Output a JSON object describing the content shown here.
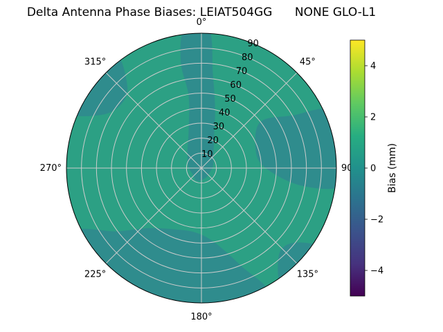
{
  "title": "Delta Antenna Phase Biases: LEIAT504GG      NONE GLO-L1",
  "chart_data": {
    "type": "heatmap",
    "projection": "polar-contour",
    "title": "Delta Antenna Phase Biases: LEIAT504GG      NONE GLO-L1",
    "antenna": "LEIAT504GG",
    "comparison": "NONE GLO-L1",
    "azimuth_labels": [
      {
        "angle": 0,
        "label": "0°"
      },
      {
        "angle": 45,
        "label": "45°"
      },
      {
        "angle": 90,
        "label": "90"
      },
      {
        "angle": 135,
        "label": "135°"
      },
      {
        "angle": 180,
        "label": "180°"
      },
      {
        "angle": 225,
        "label": "225°"
      },
      {
        "angle": 270,
        "label": "270°"
      },
      {
        "angle": 315,
        "label": "315°"
      }
    ],
    "radial_ticks": {
      "label_angle_deg": 22.5,
      "values": [
        10,
        20,
        30,
        40,
        50,
        60,
        70,
        80,
        90
      ],
      "max": 90
    },
    "grid": {
      "rings": 9,
      "spokes_every_deg": 45,
      "color": "#cccccc",
      "outline_color": "#000000"
    },
    "base_region": {
      "value_mm": 0.8,
      "color": "#2ca084"
    },
    "regions": [
      {
        "name": "center-to-top-lobe",
        "value_mm": -0.5,
        "color": "#2f8c8d",
        "points": [
          [
            353,
            1.04
          ],
          [
            349,
            0.8
          ],
          [
            350,
            0.55
          ],
          [
            343,
            0.32
          ],
          [
            320,
            0.16
          ],
          [
            280,
            0.1
          ],
          [
            240,
            0.08
          ],
          [
            200,
            0.1
          ],
          [
            160,
            0.08
          ],
          [
            120,
            0.07
          ],
          [
            75,
            0.09
          ],
          [
            40,
            0.14
          ],
          [
            22,
            0.25
          ],
          [
            13,
            0.45
          ],
          [
            7,
            0.7
          ],
          [
            3,
            1.04
          ]
        ]
      },
      {
        "name": "east-lobe",
        "value_mm": -0.5,
        "color": "#2f8c8d",
        "points": [
          [
            52,
            0.55
          ],
          [
            60,
            0.78
          ],
          [
            66,
            1.05
          ],
          [
            82,
            1.06
          ],
          [
            97,
            1.05
          ],
          [
            100,
            0.76
          ],
          [
            92,
            0.5
          ],
          [
            75,
            0.42
          ]
        ]
      },
      {
        "name": "south-west-lobe",
        "value_mm": -0.5,
        "color": "#2f8c8d",
        "points": [
          [
            152,
            1.05
          ],
          [
            158,
            0.78
          ],
          [
            170,
            0.56
          ],
          [
            185,
            0.48
          ],
          [
            205,
            0.5
          ],
          [
            222,
            0.6
          ],
          [
            233,
            0.78
          ],
          [
            243,
            1.05
          ],
          [
            220,
            1.07
          ],
          [
            195,
            1.07
          ],
          [
            170,
            1.07
          ]
        ]
      },
      {
        "name": "west-edge-lobe",
        "value_mm": -0.5,
        "color": "#2f8c8d",
        "points": [
          [
            293,
            1.06
          ],
          [
            298,
            0.84
          ],
          [
            308,
            0.76
          ],
          [
            318,
            0.82
          ],
          [
            323,
            1.06
          ],
          [
            308,
            1.08
          ]
        ]
      },
      {
        "name": "south-east-edge-lobe",
        "value_mm": -0.5,
        "color": "#2f8c8d",
        "points": [
          [
            124,
            1.06
          ],
          [
            129,
            0.88
          ],
          [
            138,
            0.86
          ],
          [
            146,
            1.06
          ],
          [
            135,
            1.08
          ]
        ]
      }
    ],
    "colorbar": {
      "label": "Bias (mm)",
      "min": -5,
      "max": 5,
      "ticks": [
        {
          "v": 4,
          "label": "4"
        },
        {
          "v": 2,
          "label": "2"
        },
        {
          "v": 0,
          "label": "0"
        },
        {
          "v": -2,
          "label": "−2"
        },
        {
          "v": -4,
          "label": "−4"
        }
      ],
      "colormap": "viridis",
      "stops": [
        {
          "t": 0.0,
          "color": "#440154"
        },
        {
          "t": 0.125,
          "color": "#46327e"
        },
        {
          "t": 0.25,
          "color": "#3b528b"
        },
        {
          "t": 0.375,
          "color": "#2c728e"
        },
        {
          "t": 0.5,
          "color": "#21918c"
        },
        {
          "t": 0.625,
          "color": "#27ad81"
        },
        {
          "t": 0.75,
          "color": "#5ec962"
        },
        {
          "t": 0.875,
          "color": "#aadc32"
        },
        {
          "t": 1.0,
          "color": "#fde725"
        }
      ]
    }
  }
}
